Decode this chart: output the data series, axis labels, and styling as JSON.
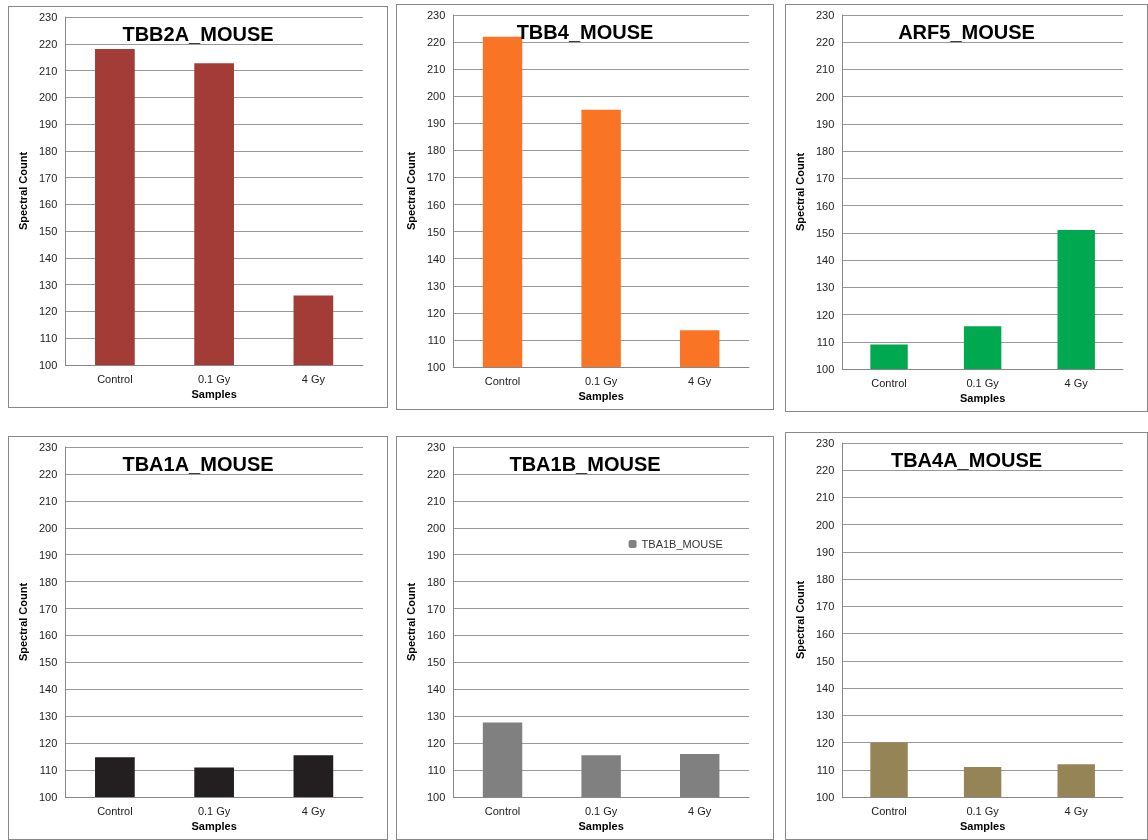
{
  "chart_data": [
    {
      "type": "bar",
      "title": "TBB2A_MOUSE",
      "xlabel": "Samples",
      "ylabel": "Spectral Count",
      "categories": [
        "Control",
        "0.1 Gy",
        "4 Gy"
      ],
      "series": [
        {
          "color": "#a33b36",
          "values": [
            218,
            212.7,
            126
          ]
        }
      ],
      "ylim": [
        100,
        230
      ],
      "yticks": [
        100,
        110,
        120,
        130,
        140,
        150,
        160,
        170,
        180,
        190,
        200,
        210,
        220,
        230
      ],
      "grid": "y"
    },
    {
      "type": "bar",
      "title": "TBB4_MOUSE",
      "xlabel": "Samples",
      "ylabel": "Spectral Count",
      "categories": [
        "Control",
        "0.1 Gy",
        "4 Gy"
      ],
      "series": [
        {
          "color": "#f97424",
          "values": [
            222,
            195,
            113.6
          ]
        }
      ],
      "ylim": [
        100,
        230
      ],
      "yticks": [
        100,
        110,
        120,
        130,
        140,
        150,
        160,
        170,
        180,
        190,
        200,
        210,
        220,
        230
      ],
      "grid": "y"
    },
    {
      "type": "bar",
      "title": "ARF5_MOUSE",
      "xlabel": "Samples",
      "ylabel": "Spectral Count",
      "categories": [
        "Control",
        "0.1 Gy",
        "4 Gy"
      ],
      "series": [
        {
          "color": "#00a94f",
          "values": [
            109,
            115.7,
            151
          ]
        }
      ],
      "ylim": [
        100,
        230
      ],
      "yticks": [
        100,
        110,
        120,
        130,
        140,
        150,
        160,
        170,
        180,
        190,
        200,
        210,
        220,
        230
      ],
      "grid": "y"
    },
    {
      "type": "bar",
      "title": "TBA1A_MOUSE",
      "xlabel": "Samples",
      "ylabel": "Spectral Count",
      "categories": [
        "Control",
        "0.1 Gy",
        "4 Gy"
      ],
      "series": [
        {
          "color": "#231f20",
          "values": [
            114.8,
            111,
            115.5
          ]
        }
      ],
      "ylim": [
        100,
        230
      ],
      "yticks": [
        100,
        110,
        120,
        130,
        140,
        150,
        160,
        170,
        180,
        190,
        200,
        210,
        220,
        230
      ],
      "grid": "y"
    },
    {
      "type": "bar",
      "title": "TBA1B_MOUSE",
      "xlabel": "Samples",
      "ylabel": "Spectral Count",
      "categories": [
        "Control",
        "0.1 Gy",
        "4 Gy"
      ],
      "series": [
        {
          "name": "TBA1B_MOUSE",
          "color": "#808080",
          "values": [
            127.7,
            115.5,
            116
          ]
        }
      ],
      "ylim": [
        100,
        230
      ],
      "yticks": [
        100,
        110,
        120,
        130,
        140,
        150,
        160,
        170,
        180,
        190,
        200,
        210,
        220,
        230
      ],
      "grid": "y",
      "legend": "top right"
    },
    {
      "type": "bar",
      "title": "TBA4A_MOUSE",
      "xlabel": "Samples",
      "ylabel": "Spectral Count",
      "categories": [
        "Control",
        "0.1 Gy",
        "4 Gy"
      ],
      "series": [
        {
          "color": "#948456",
          "values": [
            120,
            111,
            112
          ]
        }
      ],
      "ylim": [
        100,
        230
      ],
      "yticks": [
        100,
        110,
        120,
        130,
        140,
        150,
        160,
        170,
        180,
        190,
        200,
        210,
        220,
        230
      ],
      "grid": "y"
    }
  ]
}
